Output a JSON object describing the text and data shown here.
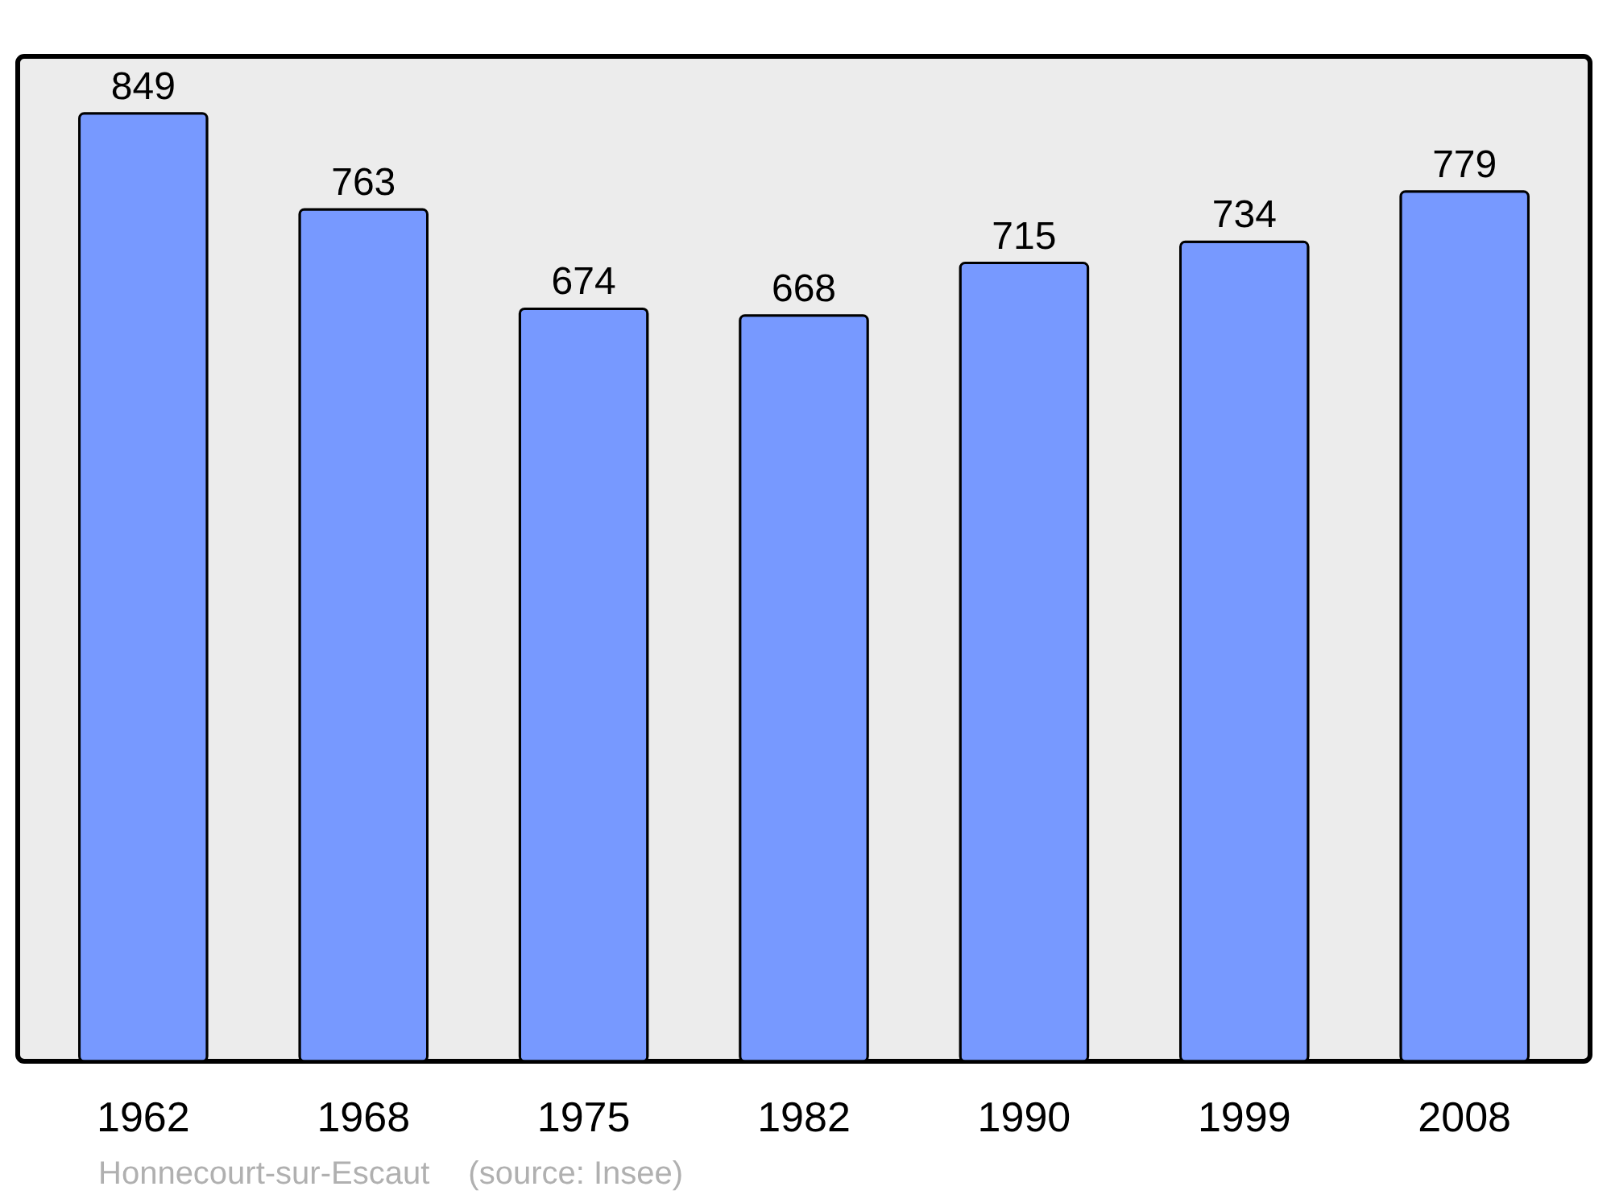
{
  "chart_data": {
    "type": "bar",
    "categories": [
      "1962",
      "1968",
      "1975",
      "1982",
      "1990",
      "1999",
      "2008"
    ],
    "values": [
      849,
      763,
      674,
      668,
      715,
      734,
      779
    ],
    "color": "#7799ff",
    "data_labels": true,
    "tick_labels": "x",
    "annotations": [
      "Honnecourt-sur-Escaut",
      "(source: Insee)"
    ]
  }
}
